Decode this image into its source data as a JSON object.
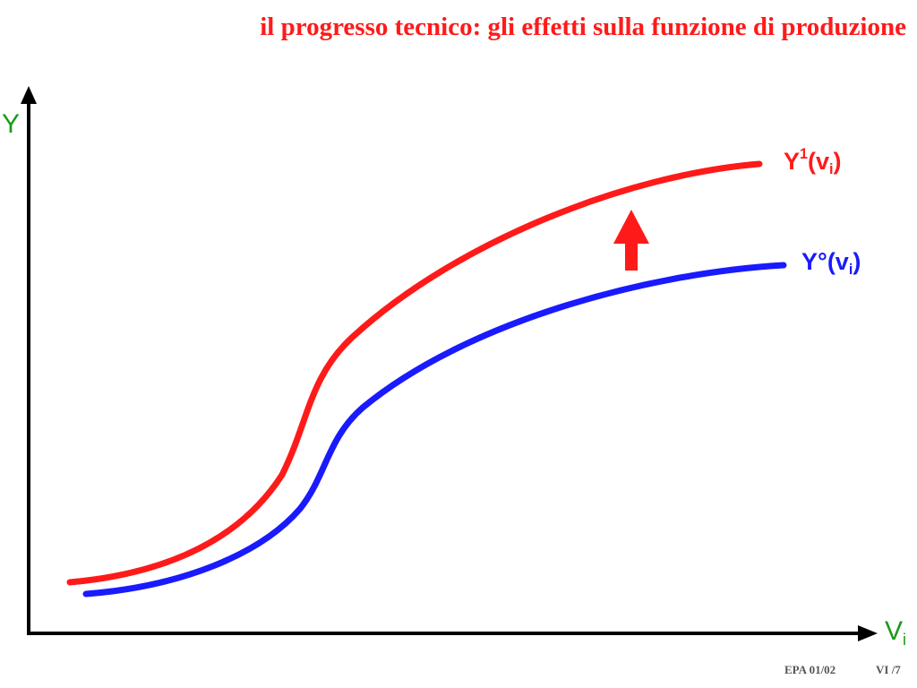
{
  "slide": {
    "title": "il progresso tecnico: gli effetti sulla funzione di produzione"
  },
  "axes": {
    "y_label": "Y",
    "x_label_main": "V",
    "x_label_sub": "i"
  },
  "curves": {
    "y1": {
      "main": "Y",
      "sup": "1",
      "open": "(v",
      "sub": "i",
      "close": ")"
    },
    "y0": {
      "main": "Y°",
      "open": "(v",
      "sub": "i",
      "close": ")"
    }
  },
  "footer": {
    "code": "EPA 01/02",
    "page": "VI /7"
  },
  "colors": {
    "title": "#ff1a1a",
    "curve_y1": "#ff1a1a",
    "curve_y0": "#1a1aff",
    "axis_labels": "#1a9a1a",
    "axes": "#000000",
    "shift_arrow": "#ff1a1a"
  }
}
